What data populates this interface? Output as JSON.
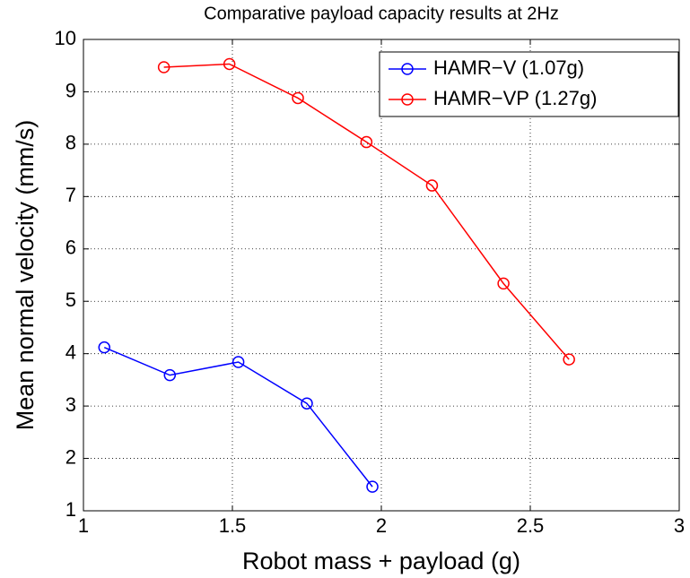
{
  "chart_data": {
    "type": "line",
    "title": "Comparative payload capacity results at 2Hz",
    "x_label": "Robot mass + payload (g)",
    "y_label": "Mean normal velocity (mm/s)",
    "series": [
      {
        "name": "HAMR−V (1.07g)",
        "color": "#0000ff",
        "x": [
          1.07,
          1.29,
          1.52,
          1.75,
          1.97
        ],
        "values": [
          4.12,
          3.59,
          3.84,
          3.05,
          1.46
        ]
      },
      {
        "name": "HAMR−VP (1.27g)",
        "color": "#ff0000",
        "x": [
          1.27,
          1.49,
          1.72,
          1.95,
          2.17,
          2.41,
          2.63
        ],
        "values": [
          9.47,
          9.53,
          8.88,
          8.04,
          7.21,
          5.34,
          3.89
        ]
      }
    ],
    "xlim": [
      1,
      3
    ],
    "xticks": [
      1,
      1.5,
      2,
      2.5,
      3
    ],
    "ylim": [
      1,
      10
    ],
    "yticks": [
      1,
      2,
      3,
      4,
      5,
      6,
      7,
      8,
      9,
      10
    ],
    "grid": true,
    "legend": "upper right",
    "marker": "circle"
  }
}
